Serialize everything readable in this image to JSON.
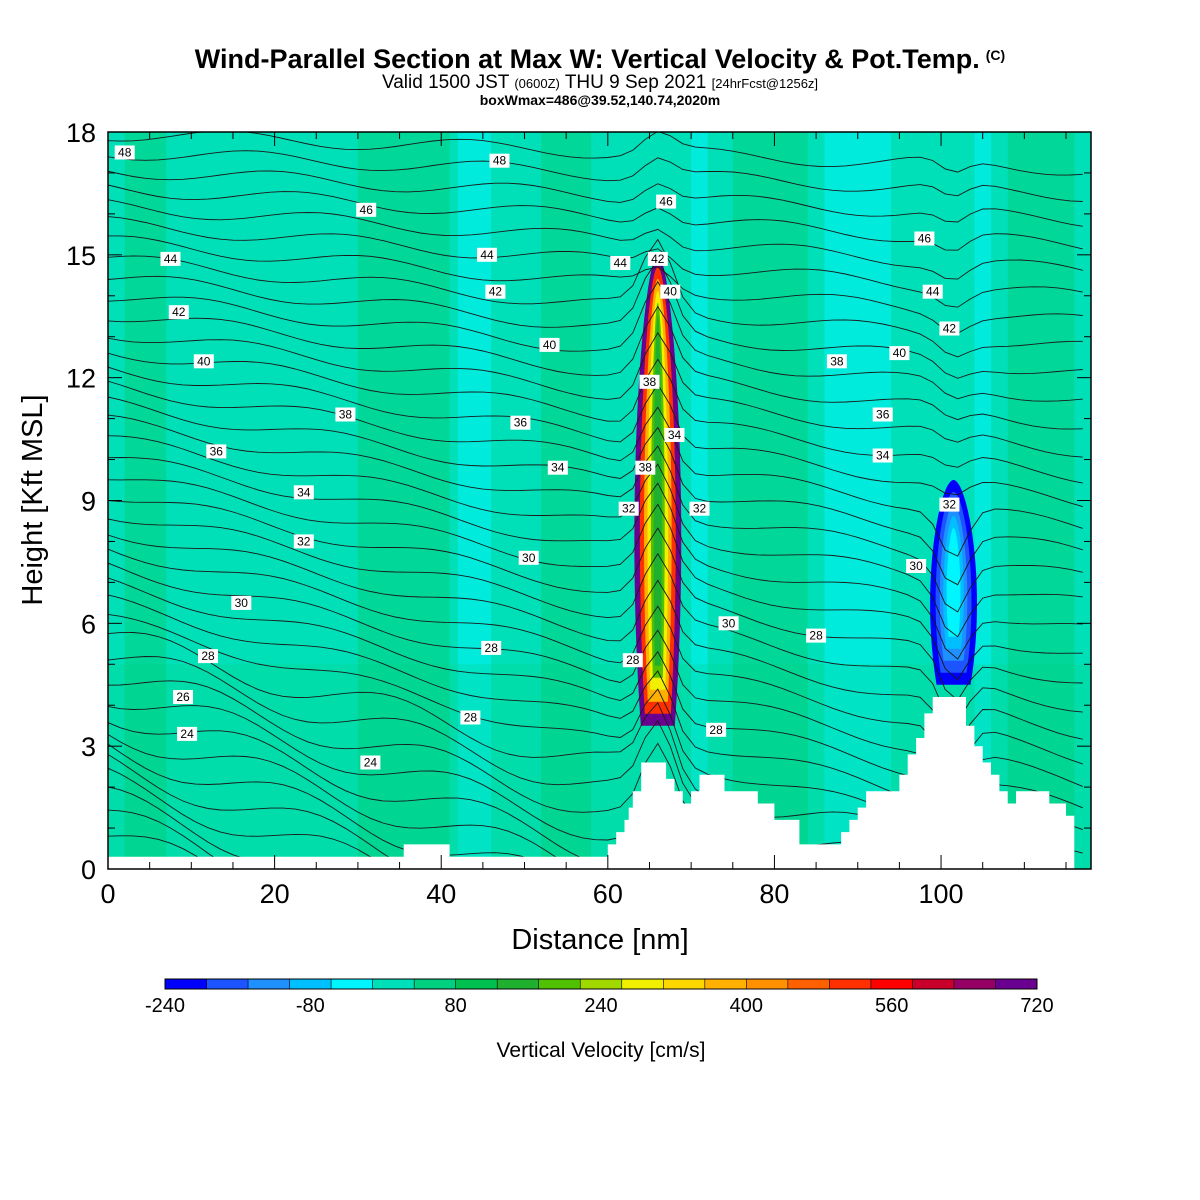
{
  "header": {
    "title_main": "Wind-Parallel Section at Max W: Vertical Velocity & Pot.Temp.",
    "title_copyright": "(C)",
    "valid_prefix": "Valid 1500 JST",
    "valid_utc": "(0600Z)",
    "valid_date": "THU 9 Sep 2021",
    "valid_forecast": "[24hrFcst@1256z]",
    "box_info": "boxWmax=486@39.52,140.74,2020m"
  },
  "chart_data": {
    "type": "heatmap",
    "xlabel": "Distance [nm]",
    "ylabel": "Height [Kft MSL]",
    "xlim": [
      0,
      118
    ],
    "ylim": [
      0,
      18
    ],
    "xticks": [
      "0",
      "20",
      "40",
      "60",
      "80",
      "100"
    ],
    "xtick_values": [
      0,
      20,
      40,
      60,
      80,
      100
    ],
    "yticks": [
      "0",
      "3",
      "6",
      "9",
      "12",
      "15",
      "18"
    ],
    "ytick_values": [
      0,
      3,
      6,
      9,
      12,
      15,
      18
    ],
    "colorbar": {
      "title": "Vertical Velocity [cm/s]",
      "labels": [
        "-240",
        "-80",
        "80",
        "240",
        "400",
        "560",
        "720"
      ],
      "label_values": [
        -240,
        -80,
        80,
        240,
        400,
        560,
        720
      ],
      "range": [
        -240,
        720
      ],
      "colors": [
        "#0000ff",
        "#1c54ff",
        "#1e90ff",
        "#00bfff",
        "#00f5ff",
        "#00e0b8",
        "#00d080",
        "#00c050",
        "#20b030",
        "#50c000",
        "#a0d800",
        "#f0f000",
        "#ffd700",
        "#ffb000",
        "#ff9000",
        "#ff6000",
        "#ff3000",
        "#ff0000",
        "#c8002a",
        "#960064",
        "#6a0090"
      ]
    },
    "updrafts": [
      {
        "x": 66,
        "base": 3.5,
        "top": 15.0,
        "peak_velocity": 720
      },
      {
        "x": 101.5,
        "base": 4.5,
        "top": 9.5,
        "peak_velocity": -240
      }
    ],
    "terrain": [
      [
        0,
        0.3
      ],
      [
        35.5,
        0.3
      ],
      [
        35.5,
        0.6
      ],
      [
        41,
        0.6
      ],
      [
        41,
        0.3
      ],
      [
        60,
        0.3
      ],
      [
        60,
        0.6
      ],
      [
        61,
        0.6
      ],
      [
        61,
        0.9
      ],
      [
        62,
        0.9
      ],
      [
        62,
        1.2
      ],
      [
        62.5,
        1.2
      ],
      [
        62.5,
        1.5
      ],
      [
        63,
        1.5
      ],
      [
        63,
        1.9
      ],
      [
        64,
        1.9
      ],
      [
        64,
        2.6
      ],
      [
        67,
        2.6
      ],
      [
        67,
        2.2
      ],
      [
        68,
        2.2
      ],
      [
        68,
        1.9
      ],
      [
        69,
        1.9
      ],
      [
        69,
        1.6
      ],
      [
        70,
        1.6
      ],
      [
        70,
        1.9
      ],
      [
        71,
        1.9
      ],
      [
        71,
        2.3
      ],
      [
        74,
        2.3
      ],
      [
        74,
        1.9
      ],
      [
        78,
        1.9
      ],
      [
        78,
        1.6
      ],
      [
        80,
        1.6
      ],
      [
        80,
        1.2
      ],
      [
        83,
        1.2
      ],
      [
        83,
        0.6
      ],
      [
        88,
        0.6
      ],
      [
        88,
        0.9
      ],
      [
        89,
        0.9
      ],
      [
        89,
        1.2
      ],
      [
        90,
        1.2
      ],
      [
        90,
        1.5
      ],
      [
        91,
        1.5
      ],
      [
        91,
        1.9
      ],
      [
        95,
        1.9
      ],
      [
        95,
        2.3
      ],
      [
        96,
        2.3
      ],
      [
        96,
        2.8
      ],
      [
        97,
        2.8
      ],
      [
        97,
        3.2
      ],
      [
        98,
        3.2
      ],
      [
        98,
        3.8
      ],
      [
        99,
        3.8
      ],
      [
        99,
        4.2
      ],
      [
        103,
        4.2
      ],
      [
        103,
        3.5
      ],
      [
        104,
        3.5
      ],
      [
        104,
        3.0
      ],
      [
        105,
        3.0
      ],
      [
        105,
        2.6
      ],
      [
        106,
        2.6
      ],
      [
        106,
        2.3
      ],
      [
        107,
        2.3
      ],
      [
        107,
        1.9
      ],
      [
        108,
        1.9
      ],
      [
        108,
        1.6
      ],
      [
        109,
        1.6
      ],
      [
        109,
        1.9
      ],
      [
        113,
        1.9
      ],
      [
        113,
        1.6
      ],
      [
        115,
        1.6
      ],
      [
        115,
        1.3
      ],
      [
        116,
        1.3
      ],
      [
        116,
        0.0
      ]
    ],
    "contour_labels": [
      {
        "text": "48",
        "x": 2,
        "y": 17.5
      },
      {
        "text": "48",
        "x": 47,
        "y": 17.3
      },
      {
        "text": "46",
        "x": 31,
        "y": 16.1
      },
      {
        "text": "46",
        "x": 67,
        "y": 16.3
      },
      {
        "text": "46",
        "x": 98,
        "y": 15.4
      },
      {
        "text": "44",
        "x": 7.5,
        "y": 14.9
      },
      {
        "text": "44",
        "x": 45.5,
        "y": 15.0
      },
      {
        "text": "44",
        "x": 61.5,
        "y": 14.8
      },
      {
        "text": "44",
        "x": 99,
        "y": 14.1
      },
      {
        "text": "42",
        "x": 8.5,
        "y": 13.6
      },
      {
        "text": "42",
        "x": 46.5,
        "y": 14.1
      },
      {
        "text": "42",
        "x": 66,
        "y": 14.9
      },
      {
        "text": "42",
        "x": 101,
        "y": 13.2
      },
      {
        "text": "40",
        "x": 11.5,
        "y": 12.4
      },
      {
        "text": "40",
        "x": 53,
        "y": 12.8
      },
      {
        "text": "40",
        "x": 67.5,
        "y": 14.1
      },
      {
        "text": "40",
        "x": 95,
        "y": 12.6
      },
      {
        "text": "38",
        "x": 28.5,
        "y": 11.1
      },
      {
        "text": "38",
        "x": 65,
        "y": 11.9
      },
      {
        "text": "38",
        "x": 64.5,
        "y": 9.8
      },
      {
        "text": "38",
        "x": 87.5,
        "y": 12.4
      },
      {
        "text": "36",
        "x": 13,
        "y": 10.2
      },
      {
        "text": "36",
        "x": 49.5,
        "y": 10.9
      },
      {
        "text": "36",
        "x": 93,
        "y": 11.1
      },
      {
        "text": "34",
        "x": 23.5,
        "y": 9.2
      },
      {
        "text": "34",
        "x": 54,
        "y": 9.8
      },
      {
        "text": "34",
        "x": 68,
        "y": 10.6
      },
      {
        "text": "34",
        "x": 93,
        "y": 10.1
      },
      {
        "text": "32",
        "x": 23.5,
        "y": 8.0
      },
      {
        "text": "32",
        "x": 62.5,
        "y": 8.8
      },
      {
        "text": "32",
        "x": 71,
        "y": 8.8
      },
      {
        "text": "32",
        "x": 101,
        "y": 8.9
      },
      {
        "text": "30",
        "x": 16,
        "y": 6.5
      },
      {
        "text": "30",
        "x": 50.5,
        "y": 7.6
      },
      {
        "text": "30",
        "x": 74.5,
        "y": 6.0
      },
      {
        "text": "30",
        "x": 97,
        "y": 7.4
      },
      {
        "text": "28",
        "x": 12,
        "y": 5.2
      },
      {
        "text": "28",
        "x": 46,
        "y": 5.4
      },
      {
        "text": "28",
        "x": 63,
        "y": 5.1
      },
      {
        "text": "28",
        "x": 85,
        "y": 5.7
      },
      {
        "text": "28",
        "x": 43.5,
        "y": 3.7
      },
      {
        "text": "28",
        "x": 73,
        "y": 3.4
      },
      {
        "text": "26",
        "x": 9,
        "y": 4.2
      },
      {
        "text": "24",
        "x": 9.5,
        "y": 3.3
      },
      {
        "text": "24",
        "x": 31.5,
        "y": 2.6
      }
    ]
  }
}
